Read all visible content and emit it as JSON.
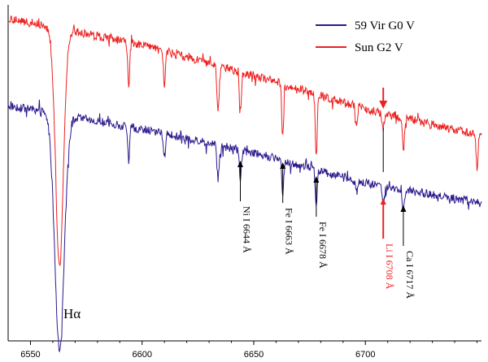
{
  "chart_data": {
    "type": "line",
    "title": "",
    "xlabel": "",
    "ylabel": "",
    "xlim": [
      6540,
      6752
    ],
    "grid": false,
    "legend_position": "top-right",
    "x_ticks": [
      6550,
      6600,
      6650,
      6700
    ],
    "x_tick_labels": [
      "6550",
      "6600",
      "6650",
      "6700"
    ],
    "series": [
      {
        "name": "59 Vir G0 V",
        "color": "#2a1a8c",
        "continuum": [
          [
            6540,
            0.7
          ],
          [
            6600,
            0.63
          ],
          [
            6650,
            0.56
          ],
          [
            6700,
            0.47
          ],
          [
            6752,
            0.41
          ]
        ],
        "lines": [
          {
            "x": 6563,
            "depth": 0.7,
            "width": 3.0
          },
          {
            "x": 6594,
            "depth": 0.1,
            "width": 0.6
          },
          {
            "x": 6610,
            "depth": 0.07,
            "width": 0.6
          },
          {
            "x": 6634,
            "depth": 0.1,
            "width": 0.7
          },
          {
            "x": 6644,
            "depth": 0.09,
            "width": 0.6
          },
          {
            "x": 6663,
            "depth": 0.1,
            "width": 0.6
          },
          {
            "x": 6678,
            "depth": 0.12,
            "width": 0.6
          },
          {
            "x": 6696,
            "depth": 0.04,
            "width": 0.6
          },
          {
            "x": 6708,
            "depth": 0.05,
            "width": 0.8
          },
          {
            "x": 6717,
            "depth": 0.07,
            "width": 0.6
          }
        ]
      },
      {
        "name": "Sun G2 V",
        "color": "#ee2020",
        "continuum": [
          [
            6540,
            0.96
          ],
          [
            6600,
            0.88
          ],
          [
            6650,
            0.79
          ],
          [
            6700,
            0.69
          ],
          [
            6752,
            0.61
          ]
        ],
        "lines": [
          {
            "x": 6563,
            "depth": 0.7,
            "width": 2.5
          },
          {
            "x": 6594,
            "depth": 0.14,
            "width": 0.6
          },
          {
            "x": 6610,
            "depth": 0.1,
            "width": 0.6
          },
          {
            "x": 6634,
            "depth": 0.14,
            "width": 0.7
          },
          {
            "x": 6644,
            "depth": 0.13,
            "width": 0.6
          },
          {
            "x": 6663,
            "depth": 0.16,
            "width": 0.6
          },
          {
            "x": 6678,
            "depth": 0.19,
            "width": 0.6
          },
          {
            "x": 6696,
            "depth": 0.05,
            "width": 0.6
          },
          {
            "x": 6708,
            "depth": 0.05,
            "width": 0.8
          },
          {
            "x": 6717,
            "depth": 0.1,
            "width": 0.6
          },
          {
            "x": 6750,
            "depth": 0.1,
            "width": 0.6
          }
        ]
      }
    ],
    "annotations": [
      {
        "text": "Ni I 6644 Å",
        "x": 6644,
        "color": "#000000"
      },
      {
        "text": "Fe I 6663 Å",
        "x": 6663,
        "color": "#000000"
      },
      {
        "text": "Fe I 6678 Å",
        "x": 6678,
        "color": "#000000"
      },
      {
        "text": "Li I 6708 Å",
        "x": 6708,
        "color": "#ee2020"
      },
      {
        "text": "Ca I 6717 Å",
        "x": 6717,
        "color": "#000000"
      }
    ],
    "halpha_label": "Hα"
  }
}
